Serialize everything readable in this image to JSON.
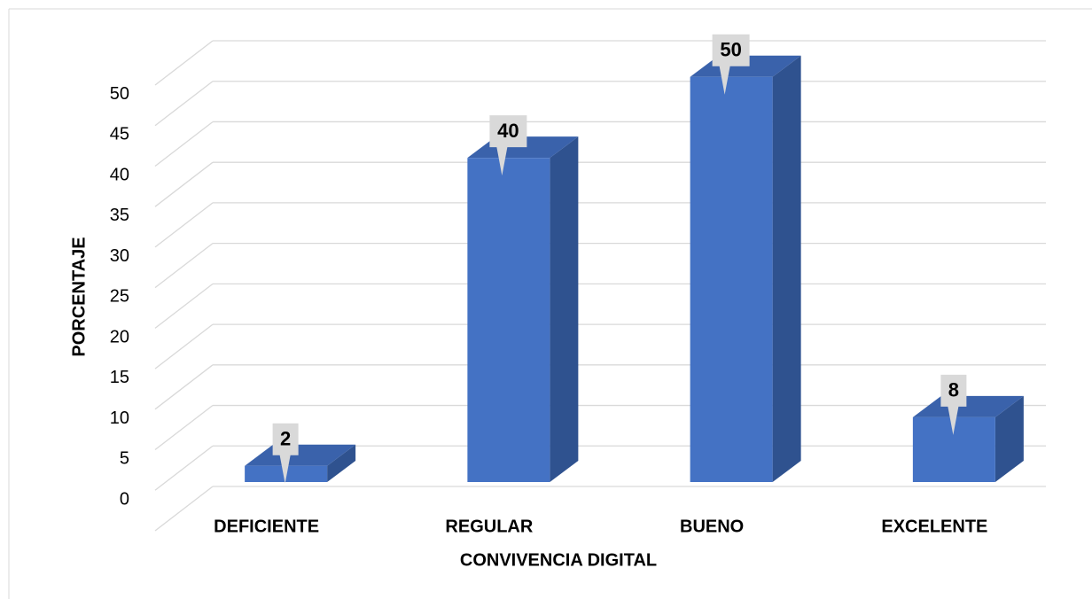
{
  "chart_data": {
    "type": "bar3d",
    "x_label": "CONVIVENCIA DIGITAL",
    "y_label": "PORCENTAJE",
    "categories": [
      "DEFICIENTE",
      "REGULAR",
      "BUENO",
      "EXCELENTE"
    ],
    "values": [
      2,
      40,
      50,
      8
    ],
    "color": "#4472c4",
    "ylim": [
      0,
      55
    ],
    "yticks": [
      0,
      5,
      10,
      15,
      20,
      25,
      30,
      35,
      40,
      45,
      50
    ],
    "grid": true
  }
}
